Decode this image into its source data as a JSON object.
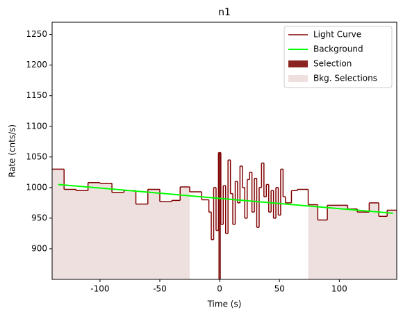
{
  "chart_data": {
    "type": "step",
    "title": "n1",
    "x_label": "Time (s)",
    "y_label": "Rate (cnts/s)",
    "xlim": [
      -140,
      148
    ],
    "ylim": [
      850,
      1270
    ],
    "xticks": [
      -100,
      -50,
      0,
      50,
      100
    ],
    "yticks": [
      900,
      950,
      1000,
      1050,
      1100,
      1150,
      1200,
      1250
    ],
    "legend": "upper right",
    "light_curve": {
      "name": "Light Curve",
      "color": "#800000",
      "bins": [
        -140,
        -130,
        -120,
        -110,
        -100,
        -90,
        -80,
        -70,
        -60,
        -50,
        -40,
        -33,
        -25,
        -15,
        -9,
        -7,
        -5,
        -3,
        -1,
        1,
        3,
        5,
        7,
        9,
        11,
        13,
        15,
        17,
        19,
        21,
        23,
        25,
        27,
        29,
        31,
        33,
        35,
        37,
        39,
        41,
        43,
        45,
        47,
        49,
        51,
        53,
        55,
        60,
        65,
        74,
        82,
        90,
        107,
        115,
        125,
        133,
        140,
        148
      ],
      "values": [
        1030,
        997,
        995,
        1008,
        1007,
        992,
        995,
        973,
        997,
        977,
        979,
        1001,
        993,
        980,
        960,
        915,
        1000,
        930,
        1057,
        940,
        1003,
        925,
        1045,
        990,
        940,
        1010,
        975,
        1035,
        1000,
        950,
        1013,
        1025,
        960,
        1015,
        935,
        1000,
        1040,
        985,
        1005,
        960,
        995,
        950,
        1000,
        955,
        1030,
        985,
        975,
        995,
        997,
        972,
        947,
        971,
        965,
        960,
        975,
        953,
        963
      ]
    },
    "background": {
      "name": "Background",
      "color": "#00ff00",
      "x": [
        -135,
        145
      ],
      "values": [
        1005,
        958
      ]
    },
    "selection": {
      "name": "Selection",
      "color": "#8b2323",
      "range": [
        -1,
        1
      ]
    },
    "bkg_selections": {
      "name": "Bkg. Selections",
      "color": "#efe0e0",
      "ranges": [
        [
          -140,
          -25
        ],
        [
          74,
          148
        ]
      ]
    }
  }
}
